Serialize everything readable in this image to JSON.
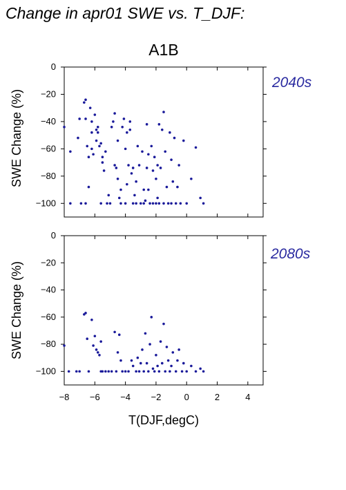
{
  "figure": {
    "title": "Change in apr01 SWE vs. T_DJF:",
    "scenario": "A1B",
    "xlabel": "T(DJF,degC)",
    "ylabel": "SWE Change (%)",
    "period_color": "#2a2aa0",
    "point_color": "#1a1a9a"
  },
  "chart_data": [
    {
      "type": "scatter",
      "period": "2040s",
      "xlim": [
        -8,
        5
      ],
      "ylim": [
        -110,
        0
      ],
      "xticks": [
        -8,
        -6,
        -4,
        -2,
        0,
        2,
        4
      ],
      "yticks": [
        0,
        -20,
        -40,
        -60,
        -80,
        -100
      ],
      "points": [
        [
          -8.0,
          -44
        ],
        [
          -7.6,
          -62
        ],
        [
          -7.6,
          -100
        ],
        [
          -7.1,
          -52
        ],
        [
          -7.0,
          -38
        ],
        [
          -6.9,
          -100
        ],
        [
          -6.7,
          -26
        ],
        [
          -6.6,
          -24
        ],
        [
          -6.6,
          -38
        ],
        [
          -6.6,
          -100
        ],
        [
          -6.5,
          -58
        ],
        [
          -6.4,
          -66
        ],
        [
          -6.4,
          -88
        ],
        [
          -6.3,
          -30
        ],
        [
          -6.2,
          -48
        ],
        [
          -6.2,
          -60
        ],
        [
          -6.2,
          -40
        ],
        [
          -6.1,
          -64
        ],
        [
          -6.0,
          -35
        ],
        [
          -5.9,
          -46
        ],
        [
          -5.9,
          -54
        ],
        [
          -5.8,
          -44
        ],
        [
          -5.8,
          -48
        ],
        [
          -5.7,
          -58
        ],
        [
          -5.6,
          -56
        ],
        [
          -5.6,
          -100
        ],
        [
          -5.5,
          -70
        ],
        [
          -5.5,
          -66
        ],
        [
          -5.4,
          -76
        ],
        [
          -5.3,
          -62
        ],
        [
          -5.2,
          -100
        ],
        [
          -5.1,
          -94
        ],
        [
          -5.0,
          -100
        ],
        [
          -4.9,
          -44
        ],
        [
          -4.8,
          -40
        ],
        [
          -4.7,
          -34
        ],
        [
          -4.7,
          -72
        ],
        [
          -4.6,
          -74
        ],
        [
          -4.5,
          -54
        ],
        [
          -4.5,
          -82
        ],
        [
          -4.4,
          -96
        ],
        [
          -4.3,
          -90
        ],
        [
          -4.3,
          -100
        ],
        [
          -4.2,
          -44
        ],
        [
          -4.1,
          -38
        ],
        [
          -4.0,
          -60
        ],
        [
          -4.0,
          -100
        ],
        [
          -3.9,
          -48
        ],
        [
          -3.9,
          -86
        ],
        [
          -3.8,
          -72
        ],
        [
          -3.7,
          -46
        ],
        [
          -3.7,
          -40
        ],
        [
          -3.6,
          -78
        ],
        [
          -3.5,
          -74
        ],
        [
          -3.5,
          -100
        ],
        [
          -3.4,
          -94
        ],
        [
          -3.3,
          -84
        ],
        [
          -3.3,
          -100
        ],
        [
          -3.2,
          -58
        ],
        [
          -3.1,
          -72
        ],
        [
          -3.0,
          -100
        ],
        [
          -2.9,
          -62
        ],
        [
          -2.8,
          -90
        ],
        [
          -2.8,
          -100
        ],
        [
          -2.7,
          -98
        ],
        [
          -2.6,
          -42
        ],
        [
          -2.6,
          -74
        ],
        [
          -2.5,
          -64
        ],
        [
          -2.5,
          -90
        ],
        [
          -2.4,
          -100
        ],
        [
          -2.3,
          -58
        ],
        [
          -2.2,
          -76
        ],
        [
          -2.2,
          -100
        ],
        [
          -2.1,
          -66
        ],
        [
          -2.0,
          -82
        ],
        [
          -2.0,
          -100
        ],
        [
          -1.9,
          -72
        ],
        [
          -1.9,
          -96
        ],
        [
          -1.8,
          -42
        ],
        [
          -1.8,
          -100
        ],
        [
          -1.7,
          -74
        ],
        [
          -1.6,
          -46
        ],
        [
          -1.5,
          -33
        ],
        [
          -1.5,
          -100
        ],
        [
          -1.4,
          -62
        ],
        [
          -1.3,
          -88
        ],
        [
          -1.2,
          -100
        ],
        [
          -1.1,
          -48
        ],
        [
          -1.0,
          -68
        ],
        [
          -1.0,
          -100
        ],
        [
          -0.9,
          -84
        ],
        [
          -0.8,
          -52
        ],
        [
          -0.7,
          -100
        ],
        [
          -0.6,
          -88
        ],
        [
          -0.5,
          -72
        ],
        [
          -0.4,
          -100
        ],
        [
          -0.2,
          -54
        ],
        [
          0.0,
          -100
        ],
        [
          0.3,
          -82
        ],
        [
          0.6,
          -59
        ],
        [
          0.9,
          -96
        ],
        [
          1.1,
          -100
        ]
      ]
    },
    {
      "type": "scatter",
      "period": "2080s",
      "xlim": [
        -8,
        5
      ],
      "ylim": [
        -110,
        0
      ],
      "xticks": [
        -8,
        -6,
        -4,
        -2,
        0,
        2,
        4
      ],
      "yticks": [
        0,
        -20,
        -40,
        -60,
        -80,
        -100
      ],
      "points": [
        [
          -8.0,
          -81
        ],
        [
          -7.7,
          -100
        ],
        [
          -7.2,
          -100
        ],
        [
          -7.0,
          -100
        ],
        [
          -6.7,
          -58
        ],
        [
          -6.6,
          -57
        ],
        [
          -6.5,
          -76
        ],
        [
          -6.4,
          -100
        ],
        [
          -6.2,
          -62
        ],
        [
          -6.1,
          -81
        ],
        [
          -6.0,
          -74
        ],
        [
          -5.9,
          -84
        ],
        [
          -5.8,
          -86
        ],
        [
          -5.7,
          -88
        ],
        [
          -5.6,
          -100
        ],
        [
          -5.6,
          -78
        ],
        [
          -5.5,
          -100
        ],
        [
          -5.3,
          -100
        ],
        [
          -5.1,
          -100
        ],
        [
          -4.9,
          -100
        ],
        [
          -4.7,
          -71
        ],
        [
          -4.6,
          -100
        ],
        [
          -4.5,
          -86
        ],
        [
          -4.4,
          -73
        ],
        [
          -4.3,
          -92
        ],
        [
          -4.2,
          -100
        ],
        [
          -4.0,
          -100
        ],
        [
          -3.8,
          -100
        ],
        [
          -3.6,
          -92
        ],
        [
          -3.5,
          -96
        ],
        [
          -3.3,
          -100
        ],
        [
          -3.2,
          -90
        ],
        [
          -3.1,
          -100
        ],
        [
          -3.0,
          -94
        ],
        [
          -2.9,
          -84
        ],
        [
          -2.8,
          -100
        ],
        [
          -2.7,
          -72
        ],
        [
          -2.6,
          -94
        ],
        [
          -2.5,
          -100
        ],
        [
          -2.4,
          -80
        ],
        [
          -2.3,
          -60
        ],
        [
          -2.2,
          -98
        ],
        [
          -2.1,
          -100
        ],
        [
          -2.0,
          -88
        ],
        [
          -1.9,
          -96
        ],
        [
          -1.8,
          -100
        ],
        [
          -1.7,
          -78
        ],
        [
          -1.6,
          -94
        ],
        [
          -1.5,
          -65
        ],
        [
          -1.4,
          -100
        ],
        [
          -1.3,
          -82
        ],
        [
          -1.2,
          -92
        ],
        [
          -1.1,
          -100
        ],
        [
          -1.0,
          -96
        ],
        [
          -0.9,
          -86
        ],
        [
          -0.7,
          -100
        ],
        [
          -0.6,
          -92
        ],
        [
          -0.5,
          -84
        ],
        [
          -0.3,
          -100
        ],
        [
          -0.2,
          -94
        ],
        [
          0.0,
          -100
        ],
        [
          0.3,
          -96
        ],
        [
          0.6,
          -100
        ],
        [
          0.9,
          -98
        ],
        [
          1.1,
          -100
        ]
      ]
    }
  ]
}
